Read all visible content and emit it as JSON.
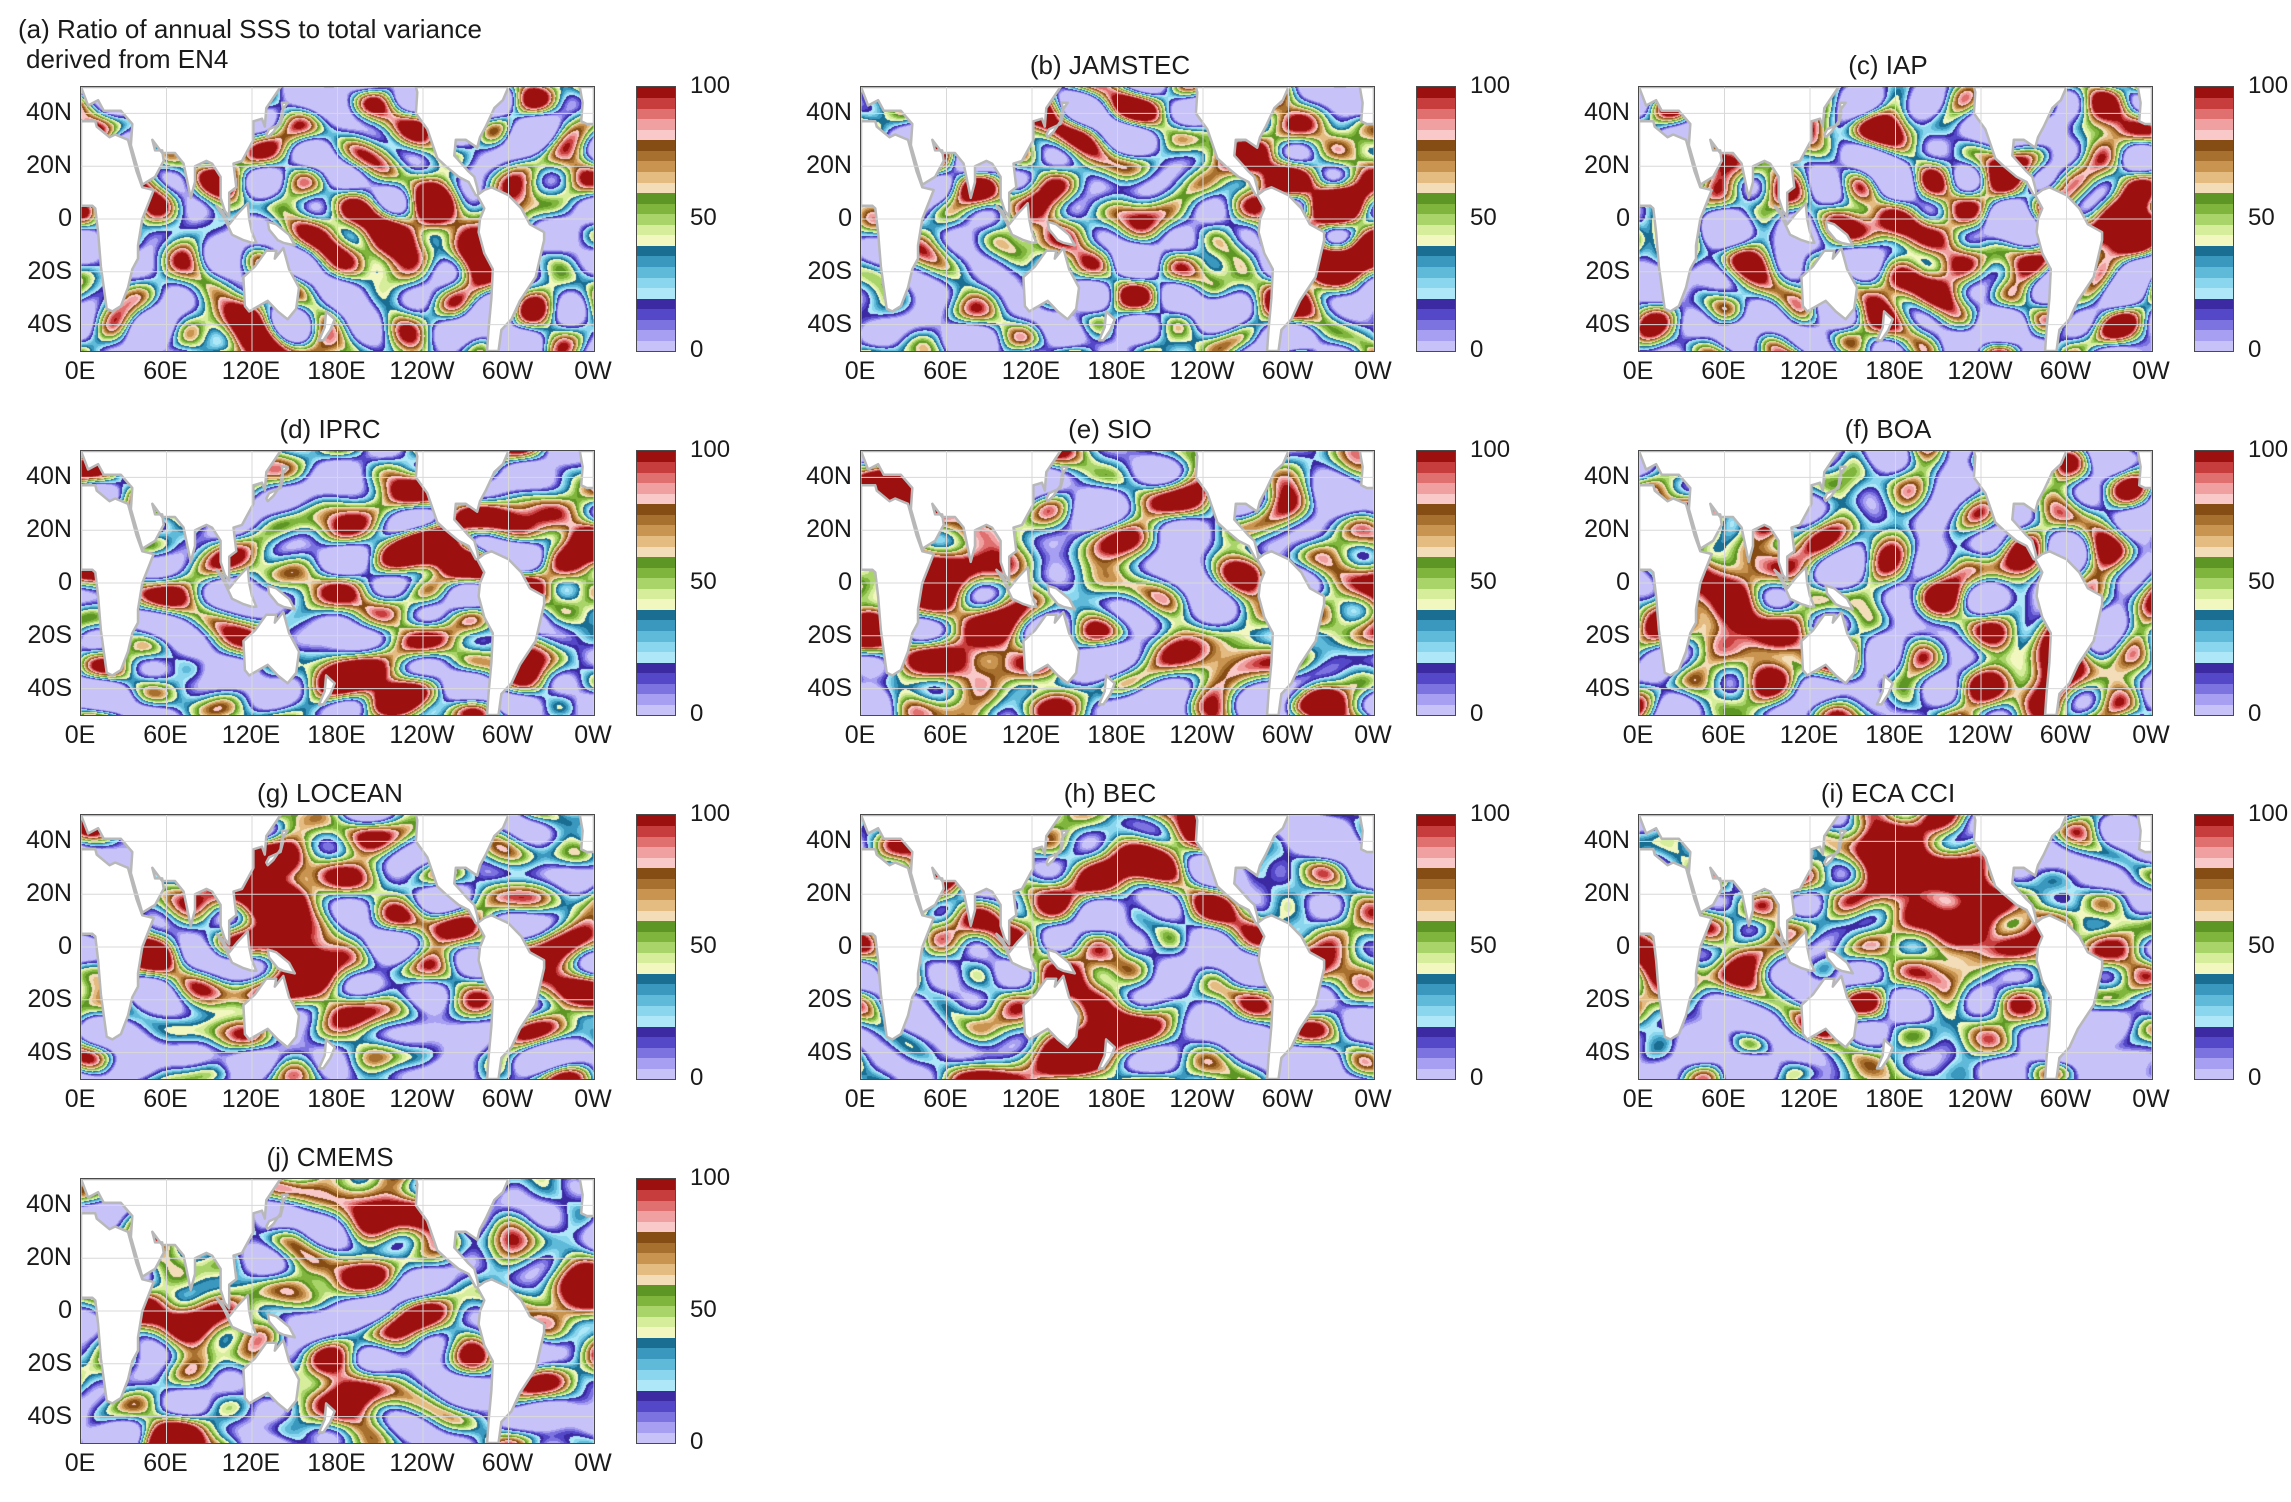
{
  "panels": [
    {
      "title": "(a) Ratio of annual SSS to total variance",
      "title_line2": "derived from EN4",
      "seed": 11
    },
    {
      "title": "(b) JAMSTEC",
      "seed": 23
    },
    {
      "title": "(c) IAP",
      "seed": 37
    },
    {
      "title": "(d) IPRC",
      "seed": 41
    },
    {
      "title": "(e) SIO",
      "seed": 53
    },
    {
      "title": "(f) BOA",
      "seed": 67
    },
    {
      "title": "(g) LOCEAN",
      "seed": 71
    },
    {
      "title": "(h) BEC",
      "seed": 83
    },
    {
      "title": "(i) ECA CCI",
      "seed": 97
    },
    {
      "title": "(j) CMEMS",
      "seed": 101
    }
  ],
  "y_ticks": [
    "40N",
    "20N",
    "0",
    "20S",
    "40S"
  ],
  "y_tick_values": [
    40,
    20,
    0,
    -20,
    -40
  ],
  "x_ticks": [
    "0E",
    "60E",
    "120E",
    "180E",
    "120W",
    "60W",
    "0W"
  ],
  "x_tick_values": [
    0,
    60,
    120,
    180,
    240,
    300,
    360
  ],
  "lat_range": [
    -50,
    50
  ],
  "lon_range": [
    0,
    360
  ],
  "colorbar": {
    "min": 0,
    "max": 100,
    "tick_labels": [
      "100",
      "50",
      "0"
    ],
    "tick_values": [
      100,
      50,
      0
    ],
    "colors": [
      "#c7c2f8",
      "#a79ff1",
      "#7d73e0",
      "#5448c8",
      "#3b2aa2",
      "#aee8f8",
      "#8ad6ee",
      "#5fbad9",
      "#3a97bd",
      "#1a6e92",
      "#f2f7bf",
      "#d6ed9c",
      "#a8d46a",
      "#7fb53c",
      "#5e9625",
      "#f2ddb8",
      "#e4bb80",
      "#c99450",
      "#a8702f",
      "#854d14",
      "#f9c8c8",
      "#f0a0a0",
      "#e06f6f",
      "#c73c3c",
      "#9c1010"
    ]
  },
  "colors": {
    "axis": "#4a4a4a",
    "land": "#ffffff",
    "coast": "#b8b8b8",
    "grid": "#d8d8d8"
  }
}
